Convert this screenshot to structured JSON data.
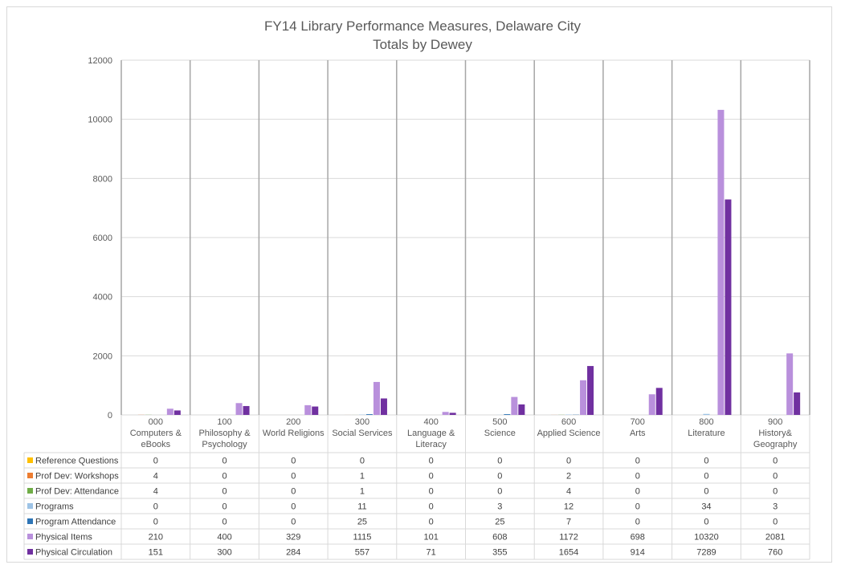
{
  "chart_data": {
    "type": "bar",
    "title": "FY14 Library Performance Measures, Delaware City",
    "subtitle": "Totals by Dewey",
    "ylim": [
      0,
      12000
    ],
    "yticks": [
      0,
      2000,
      4000,
      6000,
      8000,
      10000,
      12000
    ],
    "ytick_labels": [
      "0",
      "2000",
      "4000",
      "6000",
      "8000",
      "10000",
      "12000"
    ],
    "grid": true,
    "legend_placement": "data-table-left",
    "categories": [
      [
        "000",
        "Computers &",
        "eBooks"
      ],
      [
        "100",
        "Philosophy &",
        "Psychology"
      ],
      [
        "200",
        "World Religions"
      ],
      [
        "300",
        "Social Services"
      ],
      [
        "400",
        "Language &",
        "Literacy"
      ],
      [
        "500",
        "Science"
      ],
      [
        "600",
        "Applied Science"
      ],
      [
        "700",
        "Arts"
      ],
      [
        "800",
        "Literature"
      ],
      [
        "900",
        "History&",
        "Geography"
      ]
    ],
    "series": [
      {
        "name": "Reference Questions",
        "color": "#ffc000",
        "values": [
          0,
          0,
          0,
          0,
          0,
          0,
          0,
          0,
          0,
          0
        ]
      },
      {
        "name": "Prof Dev: Workshops",
        "color": "#ed7d31",
        "values": [
          4,
          0,
          0,
          1,
          0,
          0,
          2,
          0,
          0,
          0
        ]
      },
      {
        "name": "Prof Dev: Attendance",
        "color": "#70ad47",
        "values": [
          4,
          0,
          0,
          1,
          0,
          0,
          4,
          0,
          0,
          0
        ]
      },
      {
        "name": "Programs",
        "color": "#9dc3e6",
        "values": [
          0,
          0,
          0,
          11,
          0,
          3,
          12,
          0,
          34,
          3
        ]
      },
      {
        "name": "Program Attendance",
        "color": "#2e75b6",
        "values": [
          0,
          0,
          0,
          25,
          0,
          25,
          7,
          0,
          0,
          0
        ]
      },
      {
        "name": "Physical Items",
        "color": "#b990dc",
        "values": [
          210,
          400,
          329,
          1115,
          101,
          608,
          1172,
          698,
          10320,
          2081
        ]
      },
      {
        "name": "Physical Circulation",
        "color": "#7030a0",
        "values": [
          151,
          300,
          284,
          557,
          71,
          355,
          1654,
          914,
          7289,
          760
        ]
      }
    ]
  },
  "colors": {
    "grid": "#d9d9d9",
    "category_divider": "#a6a6a6",
    "text": "#595959"
  }
}
